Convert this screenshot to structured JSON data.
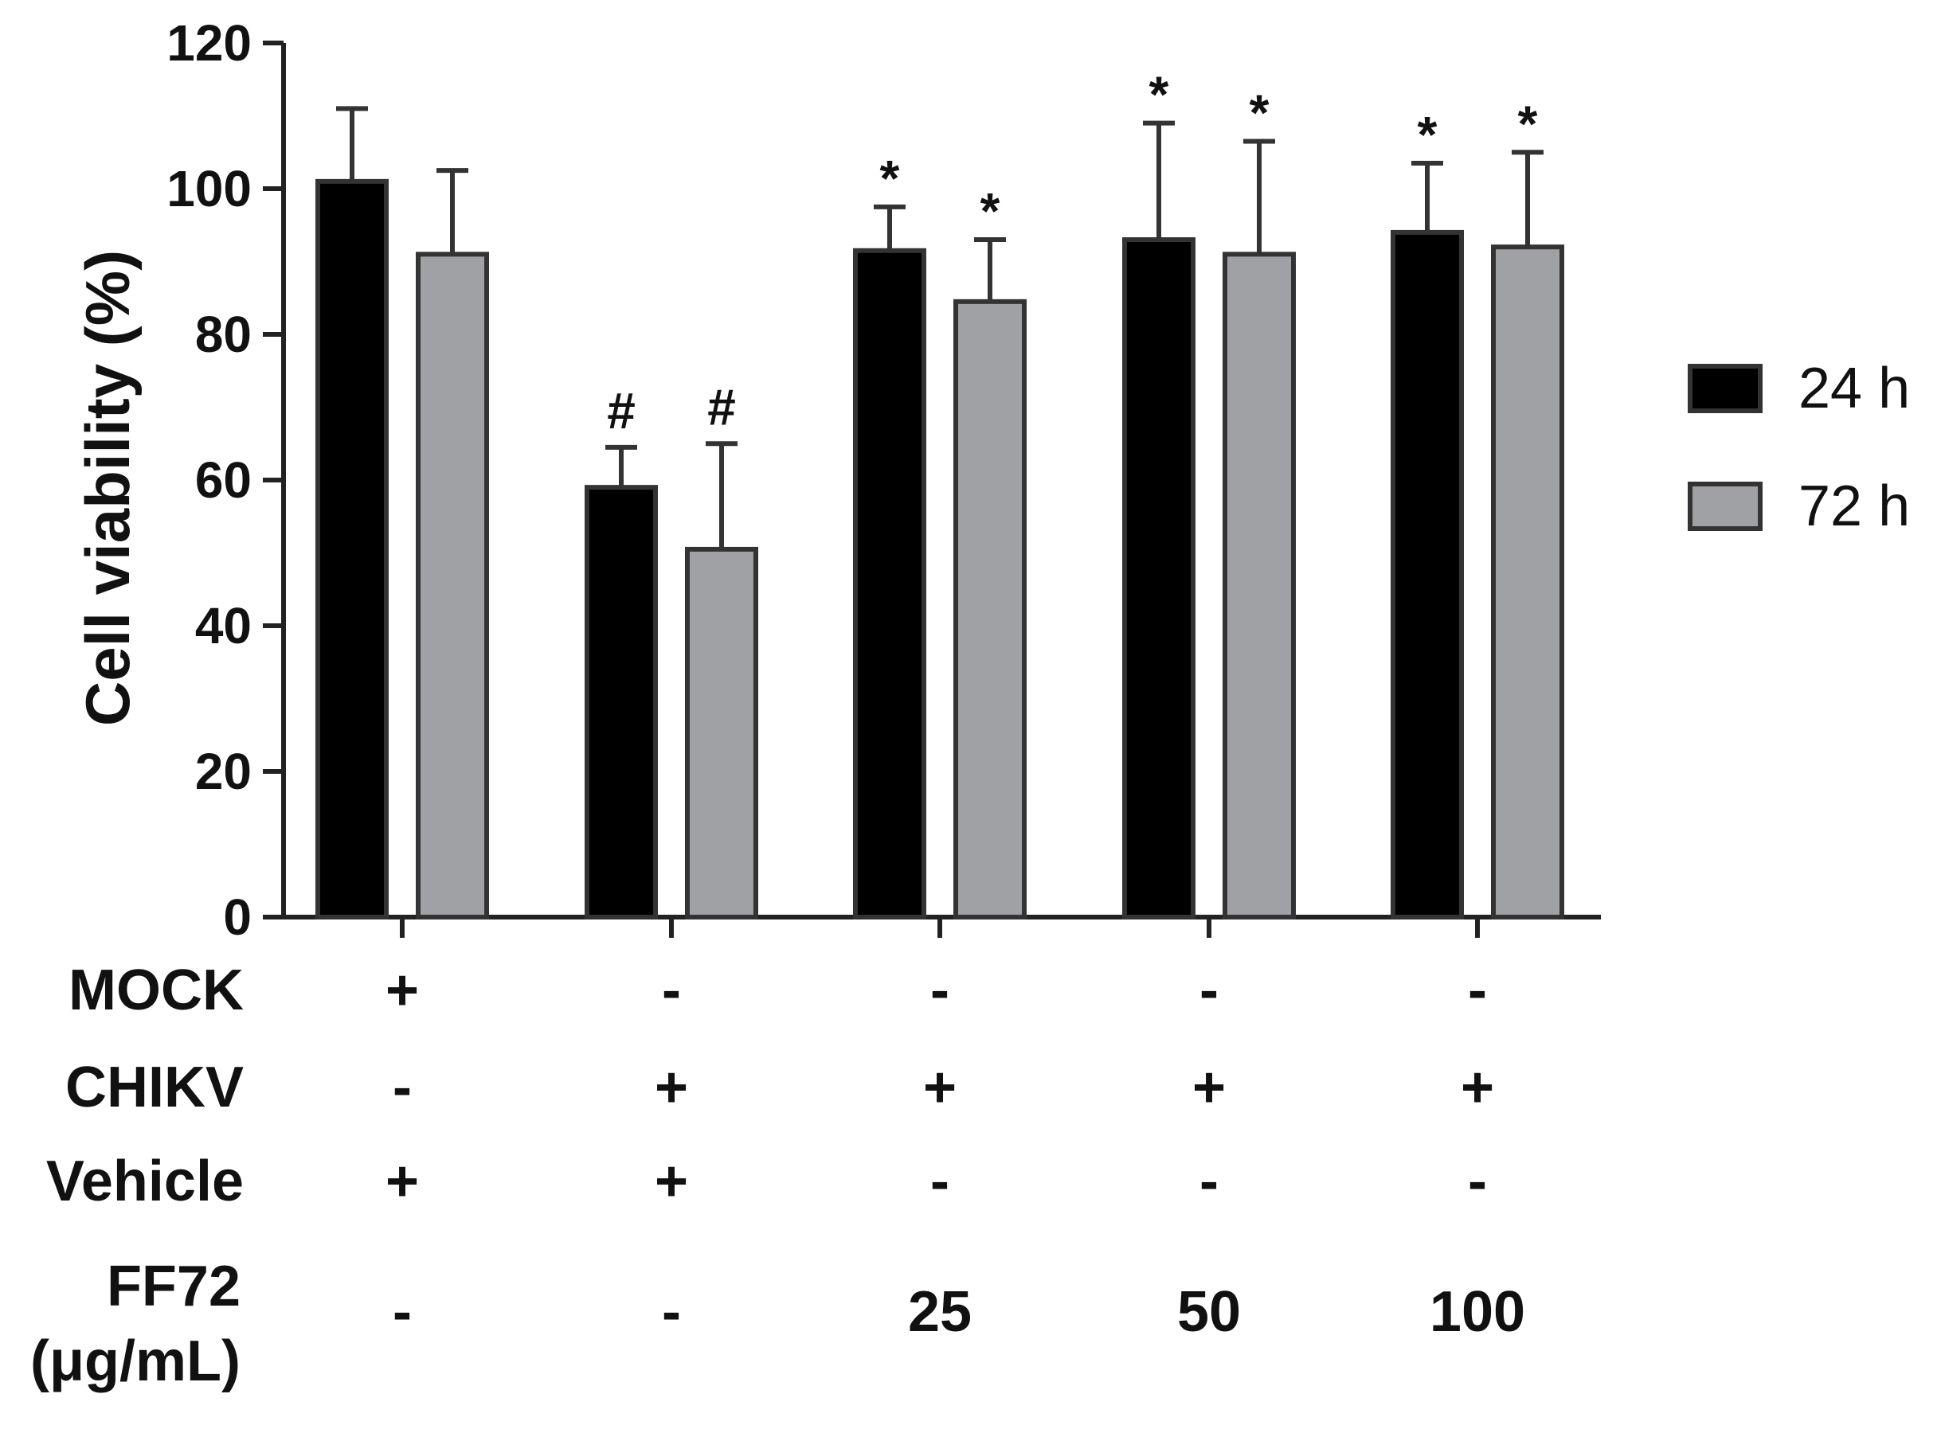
{
  "chart_data": {
    "type": "bar",
    "ylabel": "Cell viability (%)",
    "ylim": [
      0,
      120
    ],
    "yticks": [
      0,
      20,
      40,
      60,
      80,
      100,
      120
    ],
    "groups": 5,
    "series": [
      {
        "name": "24 h",
        "color": "#000000",
        "values": [
          101,
          59,
          91.5,
          93,
          94
        ],
        "errors": [
          10,
          5.5,
          6,
          16,
          9.5
        ],
        "annotations": [
          "",
          "#",
          "*",
          "*",
          "*"
        ]
      },
      {
        "name": "72 h",
        "color": "#a0a1a5",
        "values": [
          91,
          50.5,
          84.5,
          91,
          92
        ],
        "errors": [
          11.5,
          14.5,
          8.5,
          15.5,
          13
        ],
        "annotations": [
          "",
          "#",
          "*",
          "*",
          "*"
        ]
      }
    ],
    "legend_position": "right",
    "grid": false,
    "condition_rows": [
      {
        "label": "MOCK",
        "values": [
          "+",
          "-",
          "-",
          "-",
          "-"
        ]
      },
      {
        "label": "CHIKV",
        "values": [
          "-",
          "+",
          "+",
          "+",
          "+"
        ]
      },
      {
        "label": "Vehicle",
        "values": [
          "+",
          "+",
          "-",
          "-",
          "-"
        ]
      },
      {
        "label_lines": [
          "FF72",
          "(μg/mL)"
        ],
        "values": [
          "-",
          "-",
          "25",
          "50",
          "100"
        ]
      }
    ]
  }
}
